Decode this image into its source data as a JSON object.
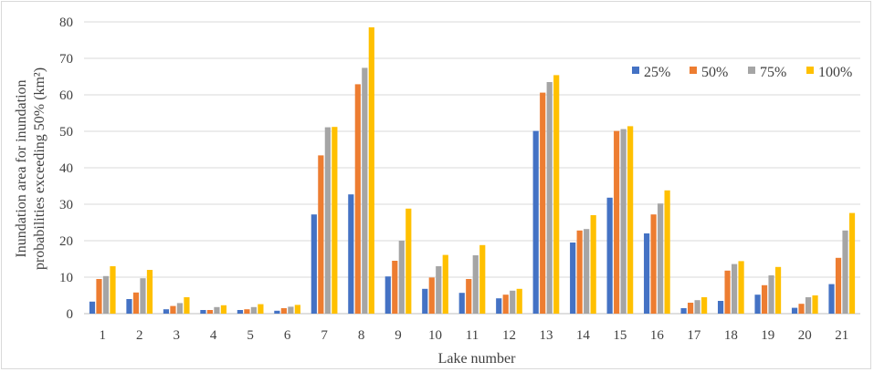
{
  "chart_data": {
    "type": "bar",
    "xlabel": "Lake number",
    "ylabel_line1": "Inundation area for inundation",
    "ylabel_line2": "probabilities exceeding 50% (km²)",
    "ylim": [
      0,
      80
    ],
    "yticks": [
      0,
      10,
      20,
      30,
      40,
      50,
      60,
      70,
      80
    ],
    "grid": true,
    "legend_position": "right, inside plot",
    "categories": [
      "1",
      "2",
      "3",
      "4",
      "5",
      "6",
      "7",
      "8",
      "9",
      "10",
      "11",
      "12",
      "13",
      "14",
      "15",
      "16",
      "17",
      "18",
      "19",
      "20",
      "21"
    ],
    "series": [
      {
        "name": "25%",
        "color": "#4472c4",
        "values": [
          3.3,
          4.0,
          1.2,
          1.0,
          1.0,
          0.8,
          27.2,
          32.7,
          10.2,
          6.8,
          5.7,
          4.2,
          50.1,
          19.5,
          31.8,
          22.0,
          1.5,
          3.5,
          5.2,
          1.6,
          8.1
        ]
      },
      {
        "name": "50%",
        "color": "#ed7d31",
        "values": [
          9.5,
          5.8,
          2.1,
          1.0,
          1.2,
          1.5,
          43.4,
          62.9,
          14.5,
          9.9,
          9.5,
          5.2,
          60.6,
          22.8,
          50.1,
          27.2,
          3.0,
          11.8,
          7.8,
          2.7,
          15.3
        ]
      },
      {
        "name": "75%",
        "color": "#a5a5a5",
        "values": [
          10.3,
          9.7,
          2.9,
          1.8,
          1.8,
          1.9,
          51.1,
          67.4,
          20.0,
          13.0,
          16.0,
          6.3,
          63.5,
          23.2,
          50.6,
          30.2,
          3.7,
          13.6,
          10.5,
          4.5,
          22.8
        ]
      },
      {
        "name": "100%",
        "color": "#ffc000",
        "values": [
          13.0,
          12.0,
          4.5,
          2.3,
          2.6,
          2.4,
          51.2,
          78.5,
          28.8,
          16.1,
          18.8,
          6.8,
          65.4,
          27.0,
          51.4,
          33.8,
          4.5,
          14.4,
          12.8,
          5.0,
          27.6
        ]
      }
    ]
  }
}
